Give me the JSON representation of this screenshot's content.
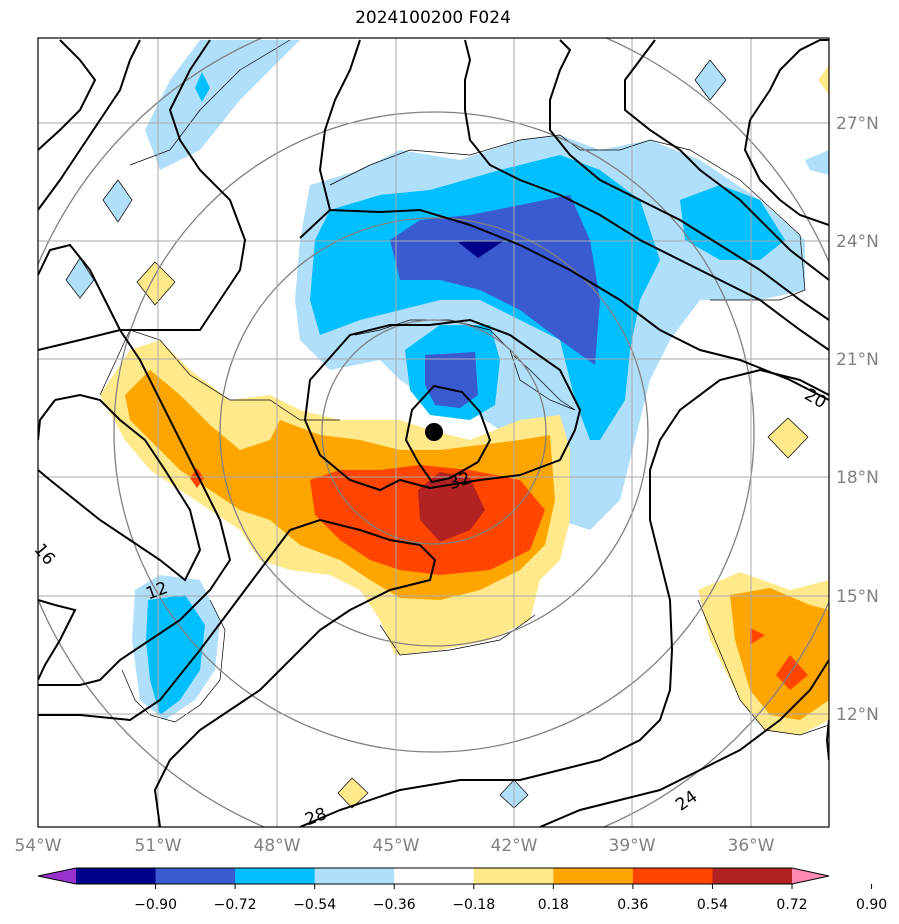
{
  "title": "2024100200 F024",
  "map": {
    "lat_labels": [
      "27°N",
      "24°N",
      "21°N",
      "18°N",
      "15°N",
      "12°N"
    ],
    "lon_labels": [
      "54°W",
      "51°W",
      "48°W",
      "45°W",
      "42°W",
      "39°W",
      "36°W"
    ],
    "storm_center": {
      "lon": "44.0°W",
      "lat": "19.2°N"
    },
    "contour_labels": [
      "32",
      "28",
      "24",
      "20",
      "16",
      "12"
    ]
  },
  "colorbar": {
    "ticks": [
      "−0.90",
      "−0.72",
      "−0.54",
      "−0.36",
      "−0.18",
      "0.18",
      "0.36",
      "0.54",
      "0.72",
      "0.90"
    ],
    "colors": [
      "#9932cc",
      "#00008b",
      "#3a5ad0",
      "#00bfff",
      "#b0dffb",
      "#ffffff",
      "#ffe98a",
      "#ffa500",
      "#ff4500",
      "#b22222",
      "#ff88b4"
    ]
  }
}
